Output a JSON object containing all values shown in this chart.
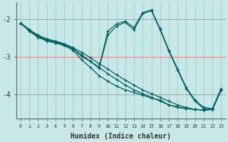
{
  "xlabel": "Humidex (Indice chaleur)",
  "ylabel": "",
  "xlim": [
    -0.5,
    23.5
  ],
  "ylim": [
    -4.65,
    -1.55
  ],
  "yticks": [
    -4,
    -3,
    -2
  ],
  "bg_color": "#c8e8e8",
  "line_color": "#006060",
  "grid_color_h": "#e09090",
  "grid_color_v": "#90c8c8",
  "lines": [
    {
      "x": [
        0,
        1,
        2,
        3,
        4,
        5,
        6,
        7,
        8,
        9,
        10,
        11,
        12,
        13,
        14,
        15,
        16,
        17,
        18,
        19,
        20,
        21,
        22,
        23
      ],
      "y": [
        -2.1,
        -2.28,
        -2.42,
        -2.52,
        -2.58,
        -2.65,
        -2.75,
        -2.88,
        -3.02,
        -3.18,
        -3.32,
        -3.48,
        -3.62,
        -3.75,
        -3.88,
        -3.98,
        -4.08,
        -4.18,
        -4.28,
        -4.35,
        -4.4,
        -4.42,
        -4.4,
        -3.88
      ]
    },
    {
      "x": [
        0,
        1,
        2,
        3,
        4,
        5,
        6,
        7,
        8,
        9,
        10,
        11,
        12,
        13,
        14,
        15,
        16,
        17,
        18,
        19,
        20,
        21,
        22,
        23
      ],
      "y": [
        -2.1,
        -2.28,
        -2.45,
        -2.55,
        -2.6,
        -2.68,
        -2.78,
        -2.95,
        -3.12,
        -3.28,
        -3.45,
        -3.6,
        -3.75,
        -3.88,
        -3.98,
        -4.08,
        -4.18,
        -4.28,
        -4.35,
        -4.38,
        -4.4,
        -4.42,
        -4.4,
        -3.88
      ]
    },
    {
      "x": [
        0,
        1,
        2,
        3,
        4,
        5,
        6,
        7,
        8,
        9,
        10,
        11,
        12,
        13,
        14,
        15,
        16,
        17,
        18,
        19,
        20,
        21,
        22,
        23
      ],
      "y": [
        -2.1,
        -2.32,
        -2.48,
        -2.58,
        -2.63,
        -2.7,
        -2.82,
        -3.08,
        -3.28,
        -3.5,
        -3.65,
        -3.78,
        -3.88,
        -3.95,
        -4.02,
        -4.1,
        -4.15,
        -4.28,
        -4.33,
        -4.38,
        -4.4,
        -4.42,
        -4.4,
        -3.88
      ]
    },
    {
      "x": [
        0,
        1,
        2,
        3,
        4,
        5,
        6,
        7,
        8,
        9,
        10,
        11,
        12,
        13,
        14,
        15,
        16,
        17,
        18,
        19,
        20,
        21,
        22,
        23
      ],
      "y": [
        -2.1,
        -2.28,
        -2.45,
        -2.55,
        -2.6,
        -2.68,
        -2.78,
        -2.98,
        -3.12,
        -3.28,
        -2.32,
        -2.12,
        -2.05,
        -2.22,
        -1.82,
        -1.75,
        -2.25,
        -2.82,
        -3.32,
        -3.82,
        -4.15,
        -4.35,
        -4.38,
        -3.85
      ]
    },
    {
      "x": [
        0,
        1,
        2,
        3,
        4,
        5,
        6,
        7,
        8,
        9,
        10,
        11,
        12,
        13,
        14,
        15,
        16,
        17,
        18,
        19,
        20,
        21,
        22,
        23
      ],
      "y": [
        -2.1,
        -2.28,
        -2.45,
        -2.55,
        -2.6,
        -2.68,
        -2.78,
        -2.98,
        -3.12,
        -3.3,
        -2.42,
        -2.18,
        -2.08,
        -2.28,
        -1.85,
        -1.77,
        -2.28,
        -2.85,
        -3.35,
        -3.85,
        -4.18,
        -4.38,
        -4.38,
        -3.85
      ]
    }
  ]
}
